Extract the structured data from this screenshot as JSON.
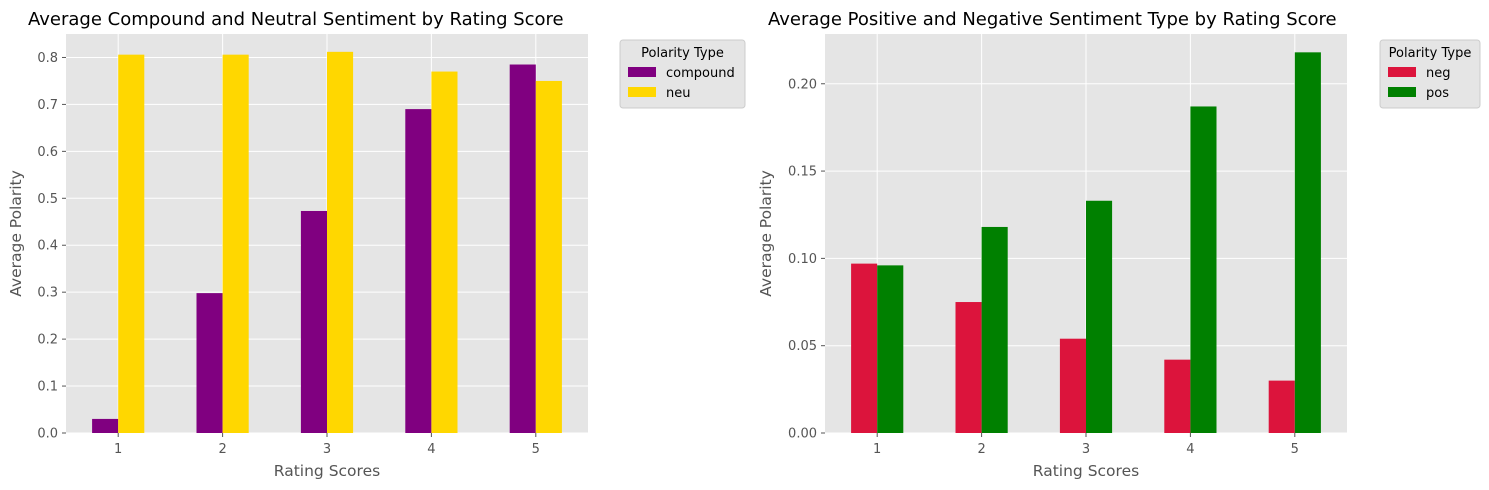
{
  "chart_data": [
    {
      "type": "bar",
      "title": "Average Compound and Neutral Sentiment by Rating Score",
      "xlabel": "Rating Scores",
      "ylabel": "Average Polarity",
      "categories": [
        "1",
        "2",
        "3",
        "4",
        "5"
      ],
      "ylim": [
        0,
        0.85
      ],
      "yticks": [
        "0.0",
        "0.1",
        "0.2",
        "0.3",
        "0.4",
        "0.5",
        "0.6",
        "0.7",
        "0.8"
      ],
      "grid": true,
      "legend_title": "Polarity Type",
      "legend_position": "outside-top-right",
      "series": [
        {
          "name": "compound",
          "color": "#800080",
          "values": [
            0.03,
            0.298,
            0.473,
            0.69,
            0.785
          ]
        },
        {
          "name": "neu",
          "color": "#FFD700",
          "values": [
            0.806,
            0.806,
            0.812,
            0.77,
            0.75
          ]
        }
      ]
    },
    {
      "type": "bar",
      "title": "Average Positive and Negative Sentiment Type by Rating Score",
      "xlabel": "Rating Scores",
      "ylabel": "Average Polarity",
      "categories": [
        "1",
        "2",
        "3",
        "4",
        "5"
      ],
      "ylim": [
        0,
        0.2285
      ],
      "yticks": [
        "0.00",
        "0.05",
        "0.10",
        "0.15",
        "0.20"
      ],
      "grid": true,
      "legend_title": "Polarity Type",
      "legend_position": "outside-top-right",
      "series": [
        {
          "name": "neg",
          "color": "#DC143C",
          "values": [
            0.097,
            0.075,
            0.054,
            0.042,
            0.03
          ]
        },
        {
          "name": "pos",
          "color": "#008000",
          "values": [
            0.096,
            0.118,
            0.133,
            0.187,
            0.218
          ]
        }
      ]
    }
  ]
}
